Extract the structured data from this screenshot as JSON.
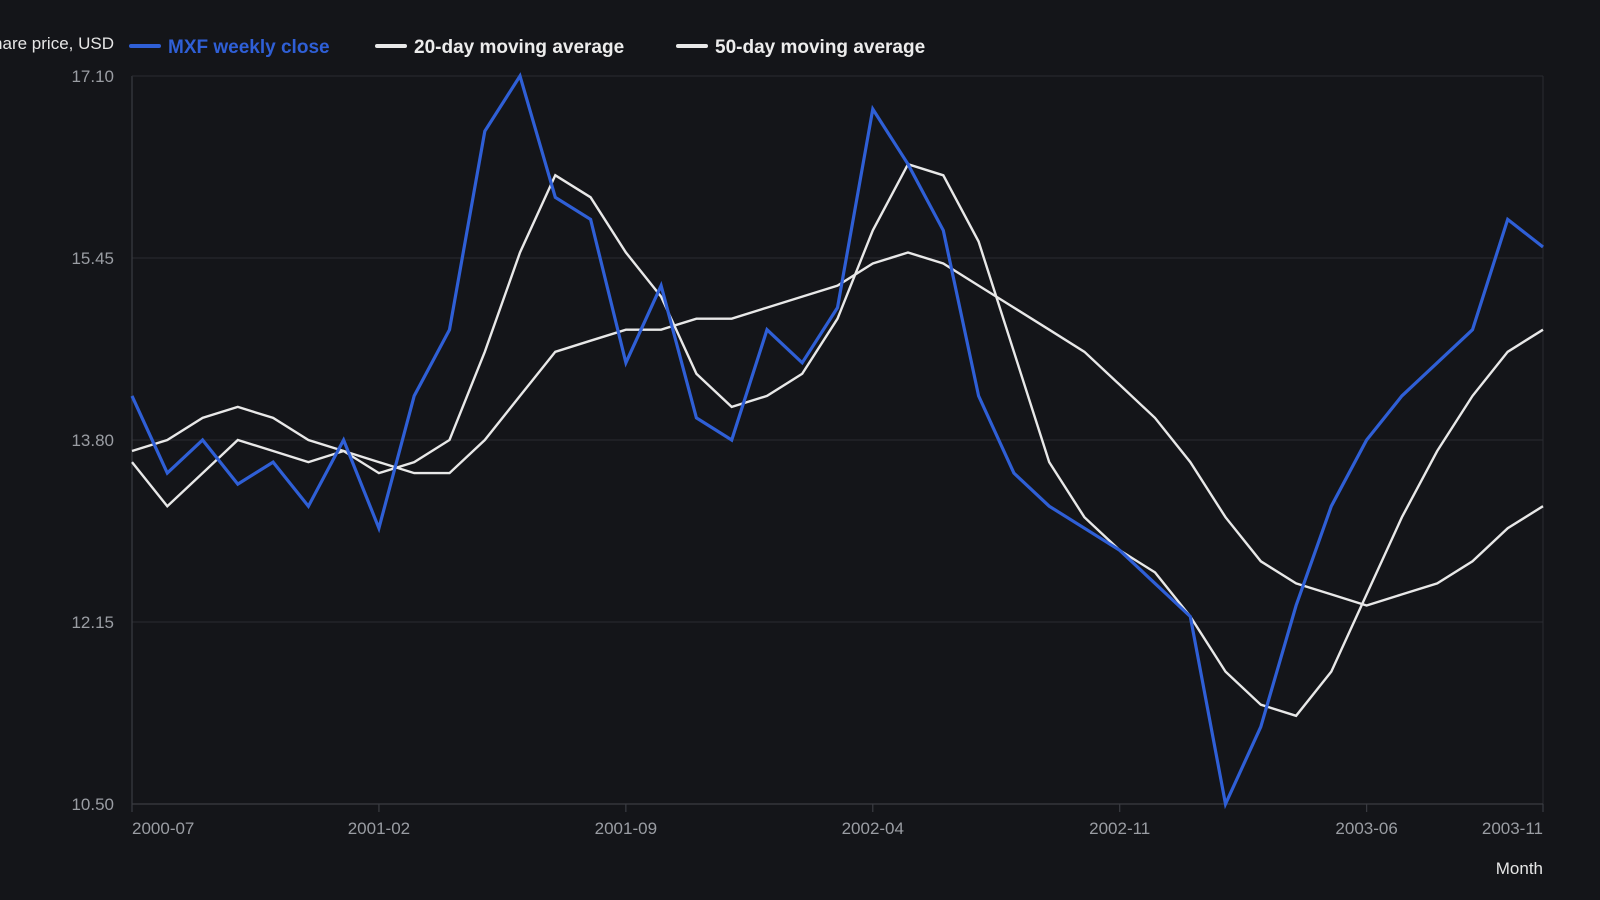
{
  "chart_data": {
    "type": "line",
    "title": "",
    "ylabel": "Share price, USD",
    "xlabel": "Month",
    "ylim": [
      10.5,
      17.1
    ],
    "yticks": [
      "10.50",
      "12.15",
      "13.80",
      "15.45",
      "17.10"
    ],
    "xticks": [
      {
        "label": "2000-07",
        "index": 0
      },
      {
        "label": "2001-02",
        "index": 7
      },
      {
        "label": "2001-09",
        "index": 14
      },
      {
        "label": "2002-04",
        "index": 21
      },
      {
        "label": "2002-11",
        "index": 28
      },
      {
        "label": "2003-06",
        "index": 35
      },
      {
        "label": "2003-11",
        "index": 40
      }
    ],
    "legend_position": "top-left",
    "grid": true,
    "series": [
      {
        "name": "MXF weekly close",
        "color": "#2f5fd6",
        "values": [
          14.2,
          13.5,
          13.8,
          13.4,
          13.6,
          13.2,
          13.8,
          13.0,
          14.2,
          14.8,
          16.6,
          17.1,
          16.0,
          15.8,
          14.5,
          15.2,
          14.0,
          13.8,
          14.8,
          14.5,
          15.0,
          16.8,
          16.3,
          15.7,
          14.2,
          13.5,
          13.2,
          13.0,
          12.8,
          12.5,
          12.2,
          10.5,
          11.2,
          12.3,
          13.2,
          13.8,
          14.2,
          14.5,
          14.8,
          15.8,
          15.55
        ]
      },
      {
        "name": "20-day moving average",
        "color": "#e8e8e8",
        "values": [
          13.6,
          13.2,
          13.5,
          13.8,
          13.7,
          13.6,
          13.7,
          13.5,
          13.6,
          13.8,
          14.6,
          15.5,
          16.2,
          16.0,
          15.5,
          15.1,
          14.4,
          14.1,
          14.2,
          14.4,
          14.9,
          15.7,
          16.3,
          16.2,
          15.6,
          14.6,
          13.6,
          13.1,
          12.8,
          12.6,
          12.2,
          11.7,
          11.4,
          11.3,
          11.7,
          12.4,
          13.1,
          13.7,
          14.2,
          14.6,
          14.8
        ]
      },
      {
        "name": "50-day moving average",
        "color": "#e8e8e8",
        "values": [
          13.7,
          13.8,
          14.0,
          14.1,
          14.0,
          13.8,
          13.7,
          13.6,
          13.5,
          13.5,
          13.8,
          14.2,
          14.6,
          14.7,
          14.8,
          14.8,
          14.9,
          14.9,
          15.0,
          15.1,
          15.2,
          15.4,
          15.5,
          15.4,
          15.2,
          15.0,
          14.8,
          14.6,
          14.3,
          14.0,
          13.6,
          13.1,
          12.7,
          12.5,
          12.4,
          12.3,
          12.4,
          12.5,
          12.7,
          13.0,
          13.2
        ]
      }
    ]
  }
}
